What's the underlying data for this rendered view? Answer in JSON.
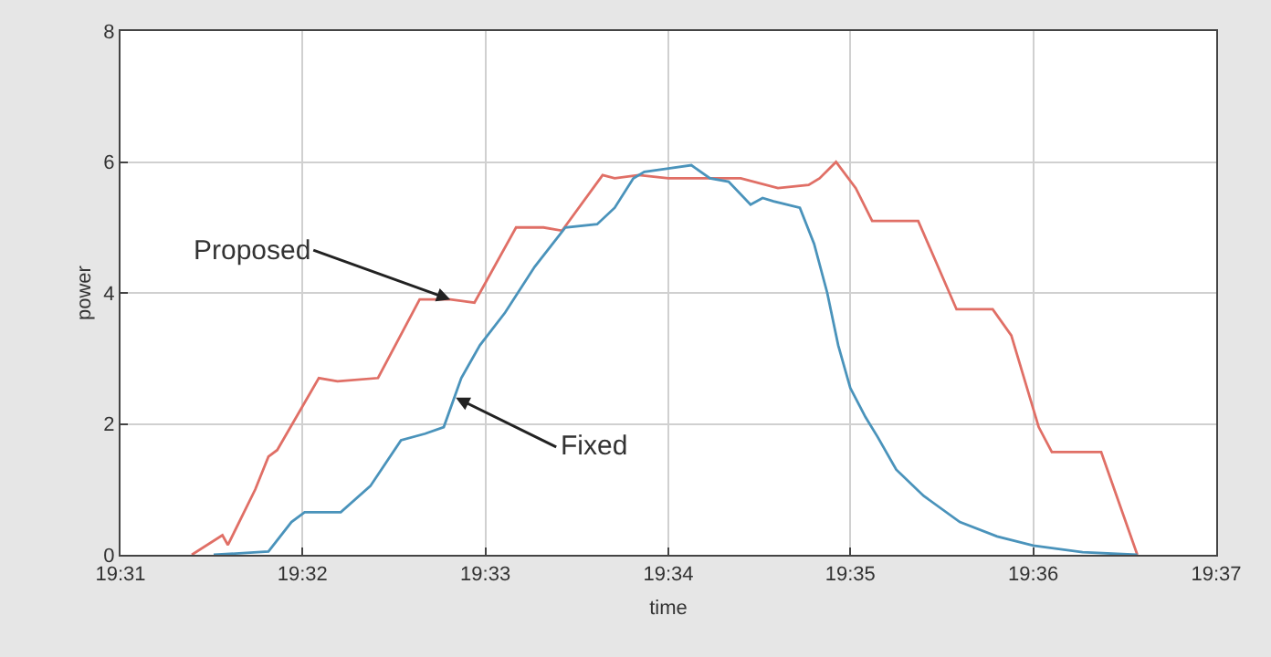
{
  "chart_data": {
    "type": "line",
    "xlabel": "time",
    "ylabel": "power",
    "xlim": [
      19.5167,
      19.6167
    ],
    "xticks": [
      {
        "value": 19.5167,
        "label": "19:31"
      },
      {
        "value": 19.5333,
        "label": "19:32"
      },
      {
        "value": 19.55,
        "label": "19:33"
      },
      {
        "value": 19.5667,
        "label": "19:34"
      },
      {
        "value": 19.5833,
        "label": "19:35"
      },
      {
        "value": 19.6,
        "label": "19:36"
      },
      {
        "value": 19.6167,
        "label": "19:37"
      }
    ],
    "ylim": [
      0,
      8
    ],
    "yticks": [
      0,
      2,
      4,
      6,
      8
    ],
    "grid": true,
    "marker": "none",
    "line_style": "solid",
    "series": [
      {
        "color": "#e06f66",
        "x": [
          19.5232,
          19.526,
          19.5265,
          19.529,
          19.5302,
          19.531,
          19.5348,
          19.5365,
          19.5402,
          19.544,
          19.5468,
          19.549,
          19.5528,
          19.5553,
          19.557,
          19.5607,
          19.5618,
          19.564,
          19.5667,
          19.5733,
          19.5767,
          19.5795,
          19.5805,
          19.582,
          19.5838,
          19.5853,
          19.5895,
          19.593,
          19.5963,
          19.598,
          19.6005,
          19.6017,
          19.6062,
          19.6095
        ],
        "values": [
          0,
          0.3,
          0.15,
          1.0,
          1.5,
          1.6,
          2.7,
          2.65,
          2.7,
          3.9,
          3.9,
          3.85,
          5.0,
          5.0,
          4.95,
          5.8,
          5.75,
          5.8,
          5.75,
          5.75,
          5.6,
          5.65,
          5.75,
          6.0,
          5.6,
          5.1,
          5.1,
          3.75,
          3.75,
          3.35,
          1.95,
          1.57,
          1.57,
          0
        ]
      },
      {
        "color": "#4a93bb",
        "x": [
          19.5252,
          19.5302,
          19.5323,
          19.5335,
          19.5368,
          19.5395,
          19.5423,
          19.5445,
          19.5462,
          19.5478,
          19.5495,
          19.5518,
          19.5545,
          19.5573,
          19.5602,
          19.5618,
          19.5635,
          19.5645,
          19.5667,
          19.5688,
          19.5705,
          19.5722,
          19.5742,
          19.5753,
          19.5763,
          19.5775,
          19.5787,
          19.58,
          19.5812,
          19.5822,
          19.5833,
          19.5847,
          19.5858,
          19.5875,
          19.59,
          19.5933,
          19.5967,
          19.6,
          19.6045,
          19.6095
        ],
        "values": [
          0,
          0.05,
          0.5,
          0.65,
          0.65,
          1.05,
          1.75,
          1.85,
          1.95,
          2.7,
          3.2,
          3.7,
          4.4,
          5.0,
          5.05,
          5.3,
          5.75,
          5.85,
          5.9,
          5.95,
          5.75,
          5.7,
          5.35,
          5.45,
          5.4,
          5.35,
          5.3,
          4.75,
          4.0,
          3.2,
          2.55,
          2.1,
          1.8,
          1.3,
          0.9,
          0.5,
          0.28,
          0.14,
          0.04,
          0
        ]
      }
    ],
    "annotations": [
      {
        "text": "Proposed",
        "x": 19.5468,
        "y": 3.9
      },
      {
        "text": "Fixed",
        "x": 19.5473,
        "y": 2.4
      }
    ]
  }
}
